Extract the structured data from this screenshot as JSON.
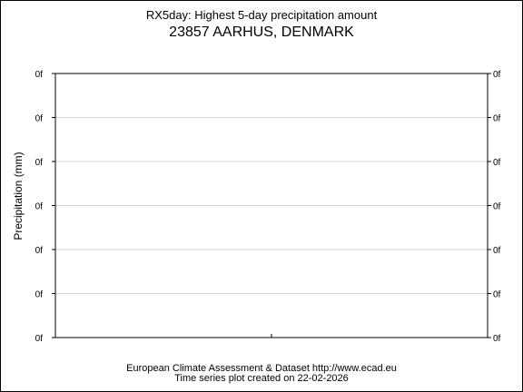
{
  "chart_data": {
    "type": "line",
    "title": "RX5day: Highest 5-day precipitation amount",
    "subtitle": "23857 AARHUS, DENMARK",
    "xlabel": "",
    "ylabel": "Precipitation (mm)",
    "y_tick_labels": [
      "0f",
      "0f",
      "0f",
      "0f",
      "0f",
      "0f",
      "0f"
    ],
    "series": [],
    "grid": true,
    "grid_color": "#d3d3d3",
    "axis_color": "#000000"
  },
  "footer": {
    "line1": "European Climate Assessment & Dataset  http://www.ecad.eu",
    "line2": "Time series plot created on 22-02-2026"
  }
}
